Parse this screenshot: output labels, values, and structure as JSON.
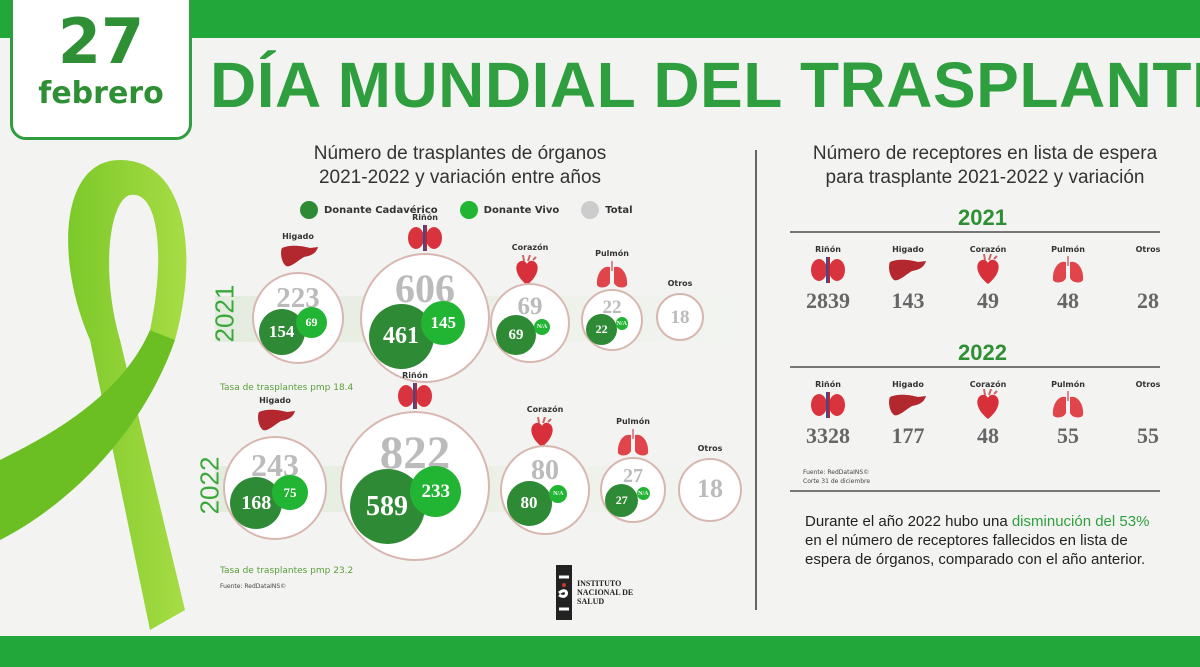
{
  "date": {
    "day": "27",
    "month": "febrero"
  },
  "title": "DÍA MUNDIAL DEL TRASPLANTE",
  "left_panel": {
    "title_line1": "Número de trasplantes de órganos",
    "title_line2": "2021-2022 y variación entre años",
    "legend": [
      {
        "label": "Donante Cadavérico",
        "color": "#2f8a35"
      },
      {
        "label": "Donante Vivo",
        "color": "#22b533"
      },
      {
        "label": "Total",
        "color": "#cccccc"
      }
    ],
    "years": [
      {
        "year": "2021",
        "rate": "Tasa de trasplantes pmp 18.4",
        "organs": [
          {
            "label": "Higado",
            "total": "223",
            "cadaver": "154",
            "vivo": "69",
            "icon": "liver-icon"
          },
          {
            "label": "Riñón",
            "total": "606",
            "cadaver": "461",
            "vivo": "145",
            "icon": "kidney-icon"
          },
          {
            "label": "Corazón",
            "total": "69",
            "cadaver": "69",
            "vivo": "N/A",
            "icon": "heart-icon"
          },
          {
            "label": "Pulmón",
            "total": "22",
            "cadaver": "22",
            "vivo": "N/A",
            "icon": "lungs-icon"
          },
          {
            "label": "Otros",
            "total": "18"
          }
        ]
      },
      {
        "year": "2022",
        "rate": "Tasa de trasplantes pmp 23.2",
        "organs": [
          {
            "label": "Higado",
            "total": "243",
            "cadaver": "168",
            "vivo": "75",
            "icon": "liver-icon"
          },
          {
            "label": "Riñón",
            "total": "822",
            "cadaver": "589",
            "vivo": "233",
            "icon": "kidney-icon"
          },
          {
            "label": "Corazón",
            "total": "80",
            "cadaver": "80",
            "vivo": "N/A",
            "icon": "heart-icon"
          },
          {
            "label": "Pulmón",
            "total": "27",
            "cadaver": "27",
            "vivo": "N/A",
            "icon": "lungs-icon"
          },
          {
            "label": "Otros",
            "total": "18"
          }
        ]
      }
    ],
    "source": "Fuente: RedDataINS©"
  },
  "logo": {
    "line1": "INSTITUTO",
    "line2": "NACIONAL DE",
    "line3": "SALUD"
  },
  "right_panel": {
    "title_line1": "Número de receptores en lista de espera",
    "title_line2": "para trasplante 2021-2022 y variación",
    "years": [
      {
        "year": "2021",
        "organs": [
          {
            "label": "Riñón",
            "value": "2839",
            "icon": "kidney-icon"
          },
          {
            "label": "Higado",
            "value": "143",
            "icon": "liver-icon"
          },
          {
            "label": "Corazón",
            "value": "49",
            "icon": "heart-icon"
          },
          {
            "label": "Pulmón",
            "value": "48",
            "icon": "lungs-icon"
          },
          {
            "label": "Otros",
            "value": "28"
          }
        ]
      },
      {
        "year": "2022",
        "organs": [
          {
            "label": "Riñón",
            "value": "3328",
            "icon": "kidney-icon"
          },
          {
            "label": "Higado",
            "value": "177",
            "icon": "liver-icon"
          },
          {
            "label": "Corazón",
            "value": "48",
            "icon": "heart-icon"
          },
          {
            "label": "Pulmón",
            "value": "55",
            "icon": "lungs-icon"
          },
          {
            "label": "Otros",
            "value": "55"
          }
        ]
      }
    ],
    "source": "Fuente: RedDataINS©",
    "cutoff": "Corte 31 de diciembre",
    "note": {
      "p1": "Durante el año 2022 hubo una ",
      "hl1": "disminución del  53%",
      "p2": " en el número de receptores fallecidos en lista de espera de órganos, comparado con el año anterior."
    }
  }
}
